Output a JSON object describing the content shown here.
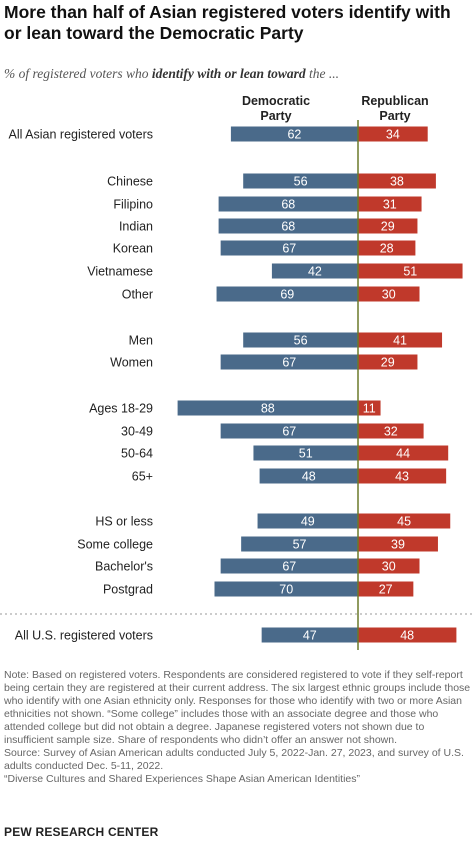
{
  "title": "More than half of Asian registered voters identify with or lean toward the Democratic Party",
  "subtitle_pre": "% of registered voters who ",
  "subtitle_em": "identify with or lean toward",
  "subtitle_post": " the ...",
  "colors": {
    "democratic": "#4a6a8a",
    "republican": "#c0392b",
    "divider": "#6b7a2a"
  },
  "chart_data": {
    "type": "bar",
    "orientation": "horizontal-diverging",
    "categories": [
      "All Asian registered voters",
      "Chinese",
      "Filipino",
      "Indian",
      "Korean",
      "Vietnamese",
      "Other",
      "Men",
      "Women",
      "Ages 18-29",
      "30-49",
      "50-64",
      "65+",
      "HS or less",
      "Some college",
      "Bachelor's",
      "Postgrad",
      "All U.S. registered voters"
    ],
    "series": [
      {
        "name": "Democratic Party",
        "values": [
          62,
          56,
          68,
          68,
          67,
          42,
          69,
          56,
          67,
          88,
          67,
          51,
          48,
          49,
          57,
          67,
          70,
          47
        ]
      },
      {
        "name": "Republican Party",
        "values": [
          34,
          38,
          31,
          29,
          28,
          51,
          30,
          41,
          29,
          11,
          32,
          44,
          43,
          45,
          39,
          30,
          27,
          48
        ]
      }
    ],
    "legend": "column headers above bars",
    "grid": false
  },
  "note": "Note: Based on registered voters. Respondents are considered registered to vote if they self-report being certain they are registered at their current address. The six largest ethnic groups include those who identify with one Asian ethnicity only. Responses for those who identify with two or more Asian ethnicities not shown. “Some college” includes those with an associate degree and those who attended college but did not obtain a degree. Japanese registered voters not shown due to insufficient sample size. Share of respondents who didn’t offer an answer not shown.",
  "source": "Source: Survey of Asian American adults conducted July 5, 2022-Jan. 27, 2023, and survey of U.S. adults conducted Dec. 5-11, 2022.",
  "report": "“Diverse Cultures and Shared Experiences Shape Asian American Identities”",
  "brand": "PEW RESEARCH CENTER"
}
